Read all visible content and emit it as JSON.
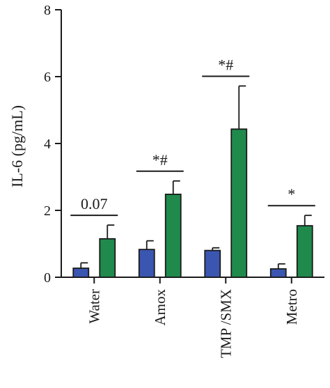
{
  "chart_data": {
    "type": "bar",
    "ylabel": "IL-6 (pg/mL)",
    "xlabel": "",
    "ylim": [
      0,
      8
    ],
    "yticks": [
      0,
      2,
      4,
      6,
      8
    ],
    "yticks_text": [
      "0",
      "2",
      "4",
      "6",
      "8"
    ],
    "categories": [
      "Water",
      "Amox",
      "TMP /SMX",
      "Metro"
    ],
    "series": [
      {
        "color": "#3a56b0",
        "values": [
          0.27,
          0.83,
          0.8,
          0.25
        ],
        "errors": [
          0.16,
          0.26,
          0.08,
          0.15
        ]
      },
      {
        "color": "#1f8a4c",
        "values": [
          1.15,
          2.48,
          4.43,
          1.54
        ],
        "errors": [
          0.41,
          0.4,
          1.29,
          0.31
        ]
      }
    ],
    "annotations": [
      "0.07",
      "*#",
      "*#",
      "*"
    ],
    "grid": false,
    "legend": "none"
  }
}
